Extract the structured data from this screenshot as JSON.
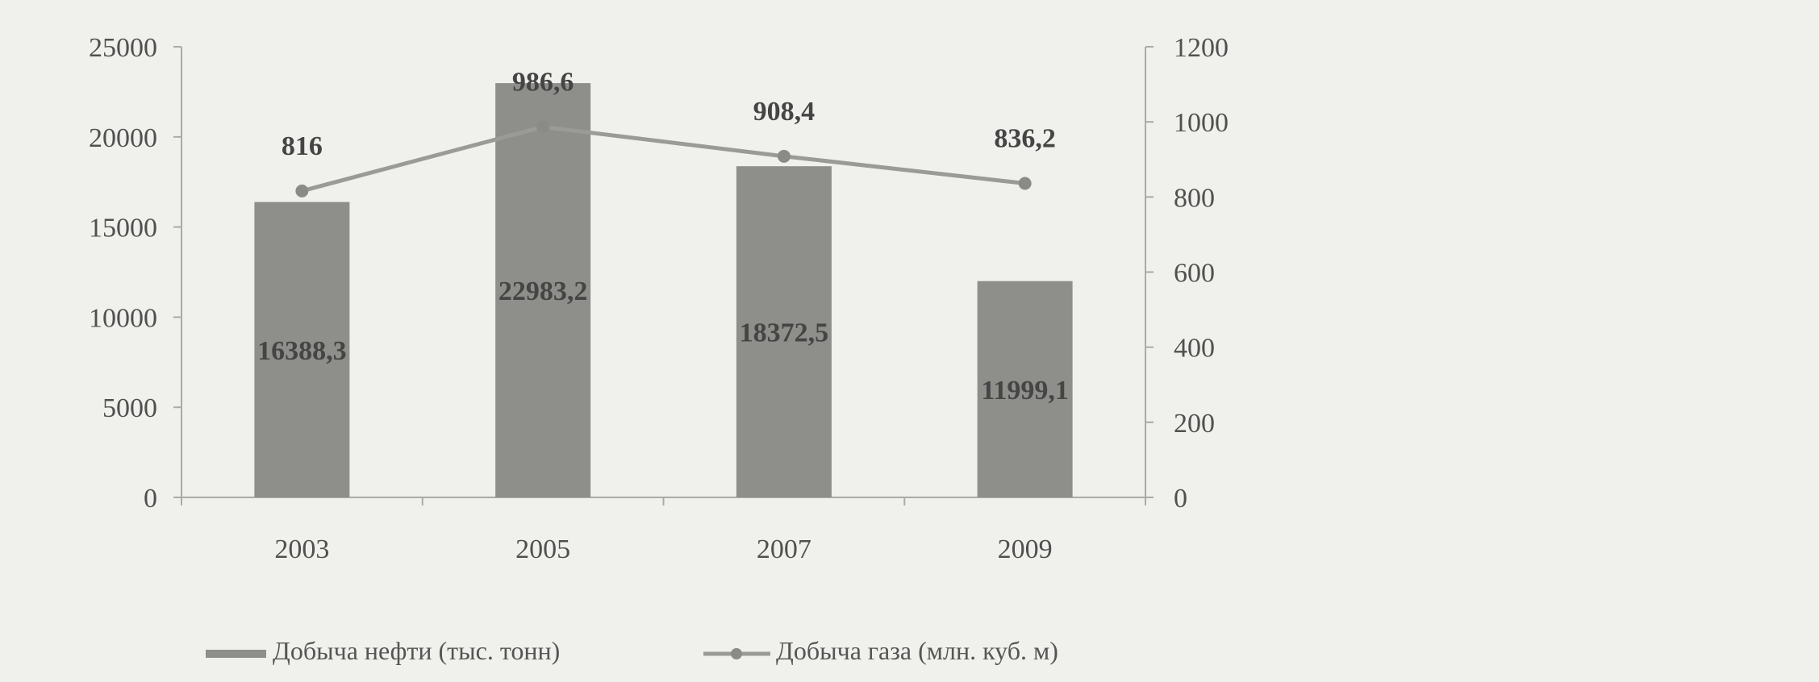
{
  "chart_data": {
    "type": "bar",
    "categories": [
      "2003",
      "2005",
      "2007",
      "2009"
    ],
    "series": [
      {
        "name": "Добыча нефти (тыс. тонн)",
        "kind": "bar",
        "axis": "left",
        "values": [
          16388.3,
          22983.2,
          18372.5,
          11999.1
        ],
        "labels": [
          "16388,3",
          "22983,2",
          "18372,5",
          "11999,1"
        ],
        "color": "#8e8e8a"
      },
      {
        "name": "Добыча газа (млн. куб. м)",
        "kind": "line",
        "axis": "right",
        "values": [
          816,
          986.6,
          908.4,
          836.2
        ],
        "labels": [
          "816",
          "986,6",
          "908,4",
          "836,2"
        ],
        "color": "#9a9a97"
      }
    ],
    "y_left": {
      "min": 0,
      "max": 25000,
      "step": 5000
    },
    "y_right": {
      "min": 0,
      "max": 1200,
      "step": 200
    },
    "legend": {
      "position": "bottom"
    },
    "grid": false
  }
}
